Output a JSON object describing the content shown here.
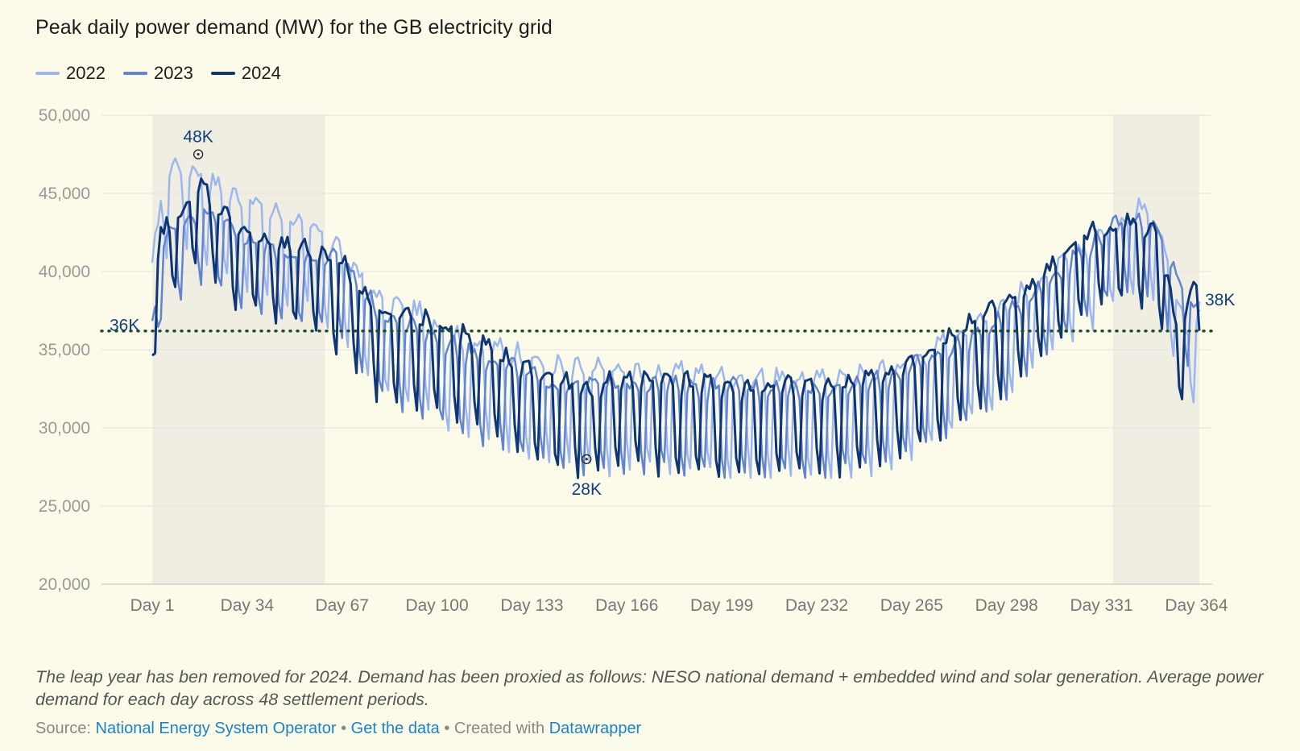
{
  "title": "Peak daily power demand (MW) for the GB electricity grid",
  "notes": "The leap year has ben removed for 2024. Demand has been proxied as follows: NESO national demand + embedded wind and solar generation. Average power demand for each day across 48 settlement periods.",
  "source": {
    "label": "Source:",
    "link1": "National Energy System Operator",
    "sep1": "•",
    "link2": "Get the data",
    "sep2": "• Created with",
    "link3": "Datawrapper"
  },
  "colors": {
    "background": "#fcfbe9",
    "shade": "#f0eee2",
    "grid": "#e2e2e2",
    "average_line": "#1e4d2b",
    "annotation": "#123f7a"
  },
  "chart_data": {
    "type": "line",
    "title": "Peak daily power demand (MW) for the GB electricity grid",
    "xlabel": "",
    "ylabel": "",
    "xlim": [
      1,
      365
    ],
    "ylim": [
      20000,
      50000
    ],
    "y_ticks": [
      20000,
      25000,
      30000,
      35000,
      40000,
      45000,
      50000
    ],
    "y_tick_labels": [
      "20,000",
      "25,000",
      "30,000",
      "35,000",
      "40,000",
      "45,000",
      "50,000"
    ],
    "x_ticks": [
      1,
      34,
      67,
      100,
      133,
      166,
      199,
      232,
      265,
      298,
      331,
      364
    ],
    "x_tick_labels": [
      "Day 1",
      "Day 34",
      "Day 67",
      "Day 100",
      "Day 133",
      "Day 166",
      "Day 199",
      "Day 232",
      "Day 265",
      "Day 298",
      "Day 331",
      "Day 364"
    ],
    "grid": true,
    "legend_position": "top-left",
    "shaded_ranges": [
      [
        1,
        61
      ],
      [
        335,
        365
      ]
    ],
    "reference_line": {
      "y": 36200,
      "label": "36K",
      "style": "dotted"
    },
    "annotations": [
      {
        "label": "48K",
        "x": 17,
        "y": 47500
      },
      {
        "label": "28K",
        "x": 152,
        "y": 28000
      },
      {
        "label": "38K",
        "x": 365,
        "y": 38200
      }
    ],
    "series_keypoints": [
      {
        "name": "2022",
        "color": "#9db7ee",
        "width": 2.5,
        "noise": 1.25,
        "keypoints": [
          [
            1,
            38500
          ],
          [
            5,
            45000
          ],
          [
            12,
            45500
          ],
          [
            25,
            43800
          ],
          [
            40,
            42500
          ],
          [
            55,
            41500
          ],
          [
            66,
            39800
          ],
          [
            80,
            36500
          ],
          [
            95,
            35500
          ],
          [
            110,
            33800
          ],
          [
            125,
            33200
          ],
          [
            140,
            32200
          ],
          [
            155,
            31900
          ],
          [
            170,
            31800
          ],
          [
            190,
            31700
          ],
          [
            205,
            31400
          ],
          [
            220,
            31400
          ],
          [
            235,
            31300
          ],
          [
            250,
            31600
          ],
          [
            265,
            32400
          ],
          [
            280,
            34200
          ],
          [
            295,
            35900
          ],
          [
            310,
            38000
          ],
          [
            325,
            39800
          ],
          [
            340,
            42200
          ],
          [
            348,
            43000
          ],
          [
            355,
            39000
          ],
          [
            360,
            34500
          ],
          [
            365,
            36200
          ]
        ]
      },
      {
        "name": "2023",
        "color": "#6384cf",
        "width": 2.5,
        "noise": 1.05,
        "keypoints": [
          [
            1,
            35000
          ],
          [
            4,
            40500
          ],
          [
            12,
            42000
          ],
          [
            20,
            42800
          ],
          [
            35,
            40600
          ],
          [
            50,
            39800
          ],
          [
            66,
            39500
          ],
          [
            80,
            35800
          ],
          [
            95,
            34600
          ],
          [
            110,
            33400
          ],
          [
            125,
            32400
          ],
          [
            140,
            31300
          ],
          [
            155,
            31200
          ],
          [
            170,
            31300
          ],
          [
            190,
            31100
          ],
          [
            205,
            31000
          ],
          [
            220,
            31000
          ],
          [
            235,
            30900
          ],
          [
            250,
            31300
          ],
          [
            265,
            32300
          ],
          [
            280,
            33700
          ],
          [
            295,
            35300
          ],
          [
            310,
            37800
          ],
          [
            325,
            40200
          ],
          [
            340,
            42300
          ],
          [
            350,
            41800
          ],
          [
            358,
            37800
          ],
          [
            365,
            36200
          ]
        ]
      },
      {
        "name": "2024",
        "color": "#0e3674",
        "width": 3,
        "noise": 1.15,
        "keypoints": [
          [
            1,
            36500
          ],
          [
            4,
            41000
          ],
          [
            12,
            42800
          ],
          [
            18,
            44200
          ],
          [
            30,
            41500
          ],
          [
            45,
            40200
          ],
          [
            60,
            39800
          ],
          [
            66,
            39000
          ],
          [
            80,
            36000
          ],
          [
            95,
            35200
          ],
          [
            110,
            34400
          ],
          [
            125,
            32700
          ],
          [
            140,
            31500
          ],
          [
            152,
            30800
          ],
          [
            160,
            31400
          ],
          [
            170,
            31600
          ],
          [
            190,
            31200
          ],
          [
            205,
            30900
          ],
          [
            220,
            31000
          ],
          [
            235,
            31100
          ],
          [
            250,
            31500
          ],
          [
            265,
            32500
          ],
          [
            280,
            34500
          ],
          [
            295,
            36000
          ],
          [
            310,
            38200
          ],
          [
            325,
            41000
          ],
          [
            340,
            41800
          ],
          [
            350,
            41000
          ],
          [
            358,
            34500
          ],
          [
            362,
            36800
          ],
          [
            365,
            38200
          ]
        ]
      }
    ]
  }
}
